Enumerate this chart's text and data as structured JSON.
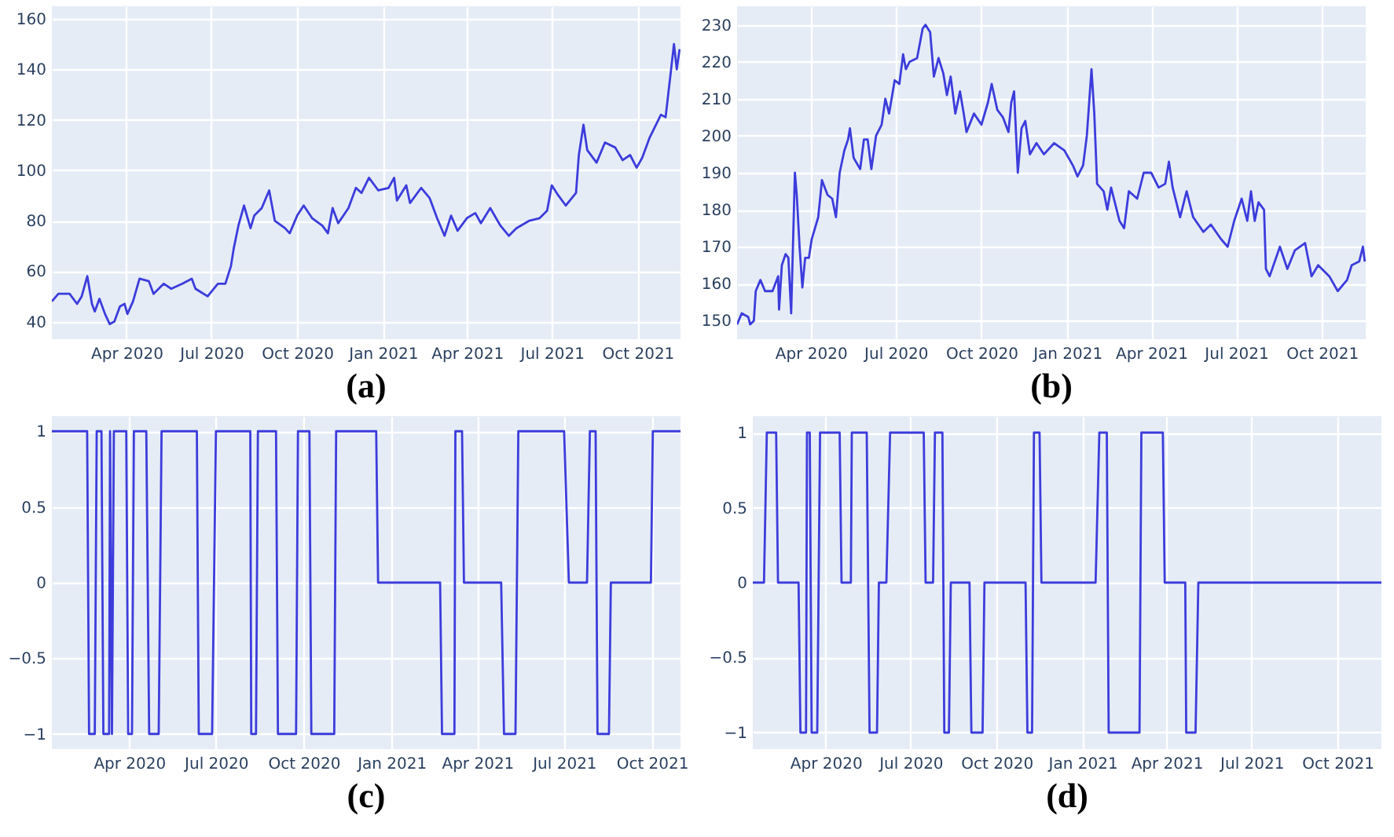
{
  "chart_data": [
    {
      "type": "line",
      "title": "(a)",
      "grid": true,
      "xlim": [
        "2020-01-12",
        "2021-11-16"
      ],
      "ylim": [
        33,
        165
      ],
      "xticks": [
        {
          "value": "2020-04-01",
          "label": "Apr 2020"
        },
        {
          "value": "2020-07-01",
          "label": "Jul 2020"
        },
        {
          "value": "2020-10-01",
          "label": "Oct 2020"
        },
        {
          "value": "2021-01-01",
          "label": "Jan 2021"
        },
        {
          "value": "2021-04-01",
          "label": "Apr 2021"
        },
        {
          "value": "2021-07-01",
          "label": "Jul 2021"
        },
        {
          "value": "2021-10-01",
          "label": "Oct 2021"
        }
      ],
      "yticks": [
        40,
        60,
        80,
        100,
        120,
        140,
        160
      ],
      "x": [
        "2020-01-12",
        "2020-01-19",
        "2020-01-31",
        "2020-02-08",
        "2020-02-13",
        "2020-02-19",
        "2020-02-24",
        "2020-02-27",
        "2020-03-03",
        "2020-03-09",
        "2020-03-14",
        "2020-03-19",
        "2020-03-25",
        "2020-03-30",
        "2020-04-02",
        "2020-04-08",
        "2020-04-15",
        "2020-04-25",
        "2020-04-30",
        "2020-05-11",
        "2020-05-19",
        "2020-05-31",
        "2020-06-10",
        "2020-06-14",
        "2020-06-27",
        "2020-07-08",
        "2020-07-16",
        "2020-07-22",
        "2020-07-25",
        "2020-07-30",
        "2020-08-05",
        "2020-08-12",
        "2020-08-16",
        "2020-08-24",
        "2020-09-01",
        "2020-09-07",
        "2020-09-18",
        "2020-09-23",
        "2020-10-01",
        "2020-10-08",
        "2020-10-17",
        "2020-10-28",
        "2020-11-03",
        "2020-11-08",
        "2020-11-14",
        "2020-11-25",
        "2020-12-03",
        "2020-12-09",
        "2020-12-17",
        "2020-12-27",
        "2021-01-07",
        "2021-01-13",
        "2021-01-16",
        "2021-01-26",
        "2021-01-30",
        "2021-02-11",
        "2021-02-20",
        "2021-02-28",
        "2021-03-08",
        "2021-03-15",
        "2021-03-22",
        "2021-04-01",
        "2021-04-10",
        "2021-04-16",
        "2021-04-26",
        "2021-05-07",
        "2021-05-16",
        "2021-05-24",
        "2021-06-07",
        "2021-06-18",
        "2021-06-26",
        "2021-07-01",
        "2021-07-08",
        "2021-07-16",
        "2021-07-27",
        "2021-07-30",
        "2021-08-04",
        "2021-08-08",
        "2021-08-18",
        "2021-08-27",
        "2021-09-07",
        "2021-09-15",
        "2021-09-23",
        "2021-09-30",
        "2021-10-06",
        "2021-10-14",
        "2021-10-26",
        "2021-10-31",
        "2021-11-05",
        "2021-11-09",
        "2021-11-12",
        "2021-11-15"
      ],
      "series": [
        {
          "color": "#3c3cdc",
          "values": [
            48,
            51,
            51,
            47,
            50,
            58,
            47,
            44,
            49,
            43,
            39,
            40,
            46,
            47,
            43,
            48,
            57,
            56,
            51,
            55,
            53,
            55,
            57,
            53,
            50,
            55,
            55,
            62,
            69,
            78,
            86,
            77,
            82,
            85,
            92,
            80,
            77,
            75,
            82,
            86,
            81,
            78,
            75,
            85,
            79,
            85,
            93,
            91,
            97,
            92,
            93,
            97,
            88,
            94,
            87,
            93,
            89,
            81,
            74,
            82,
            76,
            81,
            83,
            79,
            85,
            78,
            74,
            77,
            80,
            81,
            84,
            94,
            90,
            86,
            91,
            106,
            118,
            108,
            103,
            111,
            109,
            104,
            106,
            101,
            105,
            113,
            122,
            121,
            137,
            150,
            140,
            148
          ]
        }
      ]
    },
    {
      "type": "line",
      "title": "(b)",
      "grid": true,
      "xlim": [
        "2020-01-13",
        "2021-11-17"
      ],
      "ylim": [
        145,
        235
      ],
      "xticks": [
        {
          "value": "2020-04-01",
          "label": "Apr 2020"
        },
        {
          "value": "2020-07-01",
          "label": "Jul 2020"
        },
        {
          "value": "2020-10-01",
          "label": "Oct 2020"
        },
        {
          "value": "2021-01-01",
          "label": "Jan 2021"
        },
        {
          "value": "2021-04-01",
          "label": "Apr 2021"
        },
        {
          "value": "2021-07-01",
          "label": "Jul 2021"
        },
        {
          "value": "2021-10-01",
          "label": "Oct 2021"
        }
      ],
      "yticks": [
        150,
        160,
        170,
        180,
        190,
        200,
        210,
        220,
        230
      ],
      "x": [
        "2020-01-13",
        "2020-01-18",
        "2020-01-25",
        "2020-01-27",
        "2020-01-31",
        "2020-02-02",
        "2020-02-07",
        "2020-02-12",
        "2020-02-20",
        "2020-02-26",
        "2020-02-27",
        "2020-03-01",
        "2020-03-05",
        "2020-03-08",
        "2020-03-11",
        "2020-03-15",
        "2020-03-17",
        "2020-03-20",
        "2020-03-23",
        "2020-03-26",
        "2020-03-30",
        "2020-04-02",
        "2020-04-09",
        "2020-04-13",
        "2020-04-19",
        "2020-04-24",
        "2020-04-28",
        "2020-05-02",
        "2020-05-07",
        "2020-05-11",
        "2020-05-13",
        "2020-05-17",
        "2020-05-24",
        "2020-05-28",
        "2020-06-01",
        "2020-06-05",
        "2020-06-10",
        "2020-06-16",
        "2020-06-20",
        "2020-06-24",
        "2020-06-30",
        "2020-07-05",
        "2020-07-09",
        "2020-07-12",
        "2020-07-16",
        "2020-07-24",
        "2020-07-30",
        "2020-08-02",
        "2020-08-07",
        "2020-08-11",
        "2020-08-16",
        "2020-08-21",
        "2020-08-25",
        "2020-08-29",
        "2020-09-03",
        "2020-09-08",
        "2020-09-12",
        "2020-09-15",
        "2020-09-23",
        "2020-10-01",
        "2020-10-08",
        "2020-10-12",
        "2020-10-18",
        "2020-10-24",
        "2020-10-30",
        "2020-11-02",
        "2020-11-05",
        "2020-11-09",
        "2020-11-13",
        "2020-11-17",
        "2020-11-22",
        "2020-11-29",
        "2020-12-07",
        "2020-12-18",
        "2020-12-29",
        "2021-01-07",
        "2021-01-12",
        "2021-01-18",
        "2021-01-22",
        "2021-01-27",
        "2021-01-30",
        "2021-02-02",
        "2021-02-09",
        "2021-02-13",
        "2021-02-17",
        "2021-02-26",
        "2021-03-03",
        "2021-03-08",
        "2021-03-17",
        "2021-03-24",
        "2021-04-01",
        "2021-04-09",
        "2021-04-16",
        "2021-04-20",
        "2021-04-24",
        "2021-05-02",
        "2021-05-09",
        "2021-05-16",
        "2021-05-27",
        "2021-06-04",
        "2021-06-15",
        "2021-06-22",
        "2021-06-29",
        "2021-07-07",
        "2021-07-13",
        "2021-07-17",
        "2021-07-21",
        "2021-07-25",
        "2021-07-31",
        "2021-08-02",
        "2021-08-06",
        "2021-08-17",
        "2021-08-25",
        "2021-09-02",
        "2021-09-13",
        "2021-09-20",
        "2021-09-27",
        "2021-10-09",
        "2021-10-18",
        "2021-10-28",
        "2021-11-02",
        "2021-11-10",
        "2021-11-14",
        "2021-11-16"
      ],
      "series": [
        {
          "color": "#3c3cdc",
          "values": [
            149,
            152,
            151,
            149,
            150,
            158,
            161,
            158,
            158,
            162,
            153,
            165,
            168,
            167,
            152,
            190,
            184,
            170,
            159,
            167,
            167,
            172,
            178,
            188,
            184,
            183,
            178,
            190,
            196,
            199,
            202,
            194,
            191,
            199,
            199,
            191,
            200,
            203,
            210,
            206,
            215,
            214,
            222,
            218,
            220,
            221,
            229,
            230,
            228,
            216,
            221,
            217,
            211,
            216,
            206,
            212,
            206,
            201,
            206,
            203,
            209,
            214,
            207,
            205,
            201,
            209,
            212,
            190,
            202,
            204,
            195,
            198,
            195,
            198,
            196,
            192,
            189,
            192,
            200,
            218,
            206,
            187,
            185,
            180,
            186,
            177,
            175,
            185,
            183,
            190,
            190,
            186,
            187,
            193,
            186,
            178,
            185,
            178,
            174,
            176,
            172,
            170,
            177,
            183,
            177,
            185,
            177,
            182,
            180,
            164,
            162,
            170,
            164,
            169,
            171,
            162,
            165,
            162,
            158,
            161,
            165,
            166,
            170,
            166
          ]
        }
      ]
    },
    {
      "type": "line",
      "title": "(c)",
      "grid": true,
      "xlim": [
        "2020-01-11",
        "2021-10-31"
      ],
      "ylim": [
        -1.1,
        1.1
      ],
      "xticks": [
        {
          "value": "2020-04-01",
          "label": "Apr 2020"
        },
        {
          "value": "2020-07-01",
          "label": "Jul 2020"
        },
        {
          "value": "2020-10-01",
          "label": "Oct 2020"
        },
        {
          "value": "2021-01-01",
          "label": "Jan 2021"
        },
        {
          "value": "2021-04-01",
          "label": "Apr 2021"
        },
        {
          "value": "2021-07-01",
          "label": "Jul 2021"
        },
        {
          "value": "2021-10-01",
          "label": "Oct 2021"
        }
      ],
      "yticks": [
        -1,
        -0.5,
        0,
        0.5,
        1
      ],
      "x": [
        "2020-01-11",
        "2020-02-17",
        "2020-02-19",
        "2020-02-25",
        "2020-02-27",
        "2020-03-03",
        "2020-03-05",
        "2020-03-11",
        "2020-03-12",
        "2020-03-14",
        "2020-03-16",
        "2020-03-29",
        "2020-03-31",
        "2020-04-04",
        "2020-04-06",
        "2020-04-19",
        "2020-04-22",
        "2020-05-02",
        "2020-05-05",
        "2020-06-11",
        "2020-06-13",
        "2020-06-27",
        "2020-07-01",
        "2020-08-06",
        "2020-08-07",
        "2020-08-12",
        "2020-08-14",
        "2020-09-02",
        "2020-09-04",
        "2020-09-23",
        "2020-09-25",
        "2020-10-07",
        "2020-10-09",
        "2020-11-02",
        "2020-11-04",
        "2020-12-16",
        "2020-12-18",
        "2021-02-21",
        "2021-02-23",
        "2021-03-08",
        "2021-03-09",
        "2021-03-16",
        "2021-03-18",
        "2021-04-26",
        "2021-04-29",
        "2021-05-11",
        "2021-05-14",
        "2021-07-01",
        "2021-07-06",
        "2021-07-25",
        "2021-07-28",
        "2021-08-03",
        "2021-08-05",
        "2021-08-17",
        "2021-08-19",
        "2021-09-30",
        "2021-10-02",
        "2021-10-31"
      ],
      "series": [
        {
          "color": "#3c3cdc",
          "values": [
            1,
            1,
            -1,
            -1,
            1,
            1,
            -1,
            -1,
            1,
            -1,
            1,
            1,
            -1,
            -1,
            1,
            1,
            -1,
            -1,
            1,
            1,
            -1,
            -1,
            1,
            1,
            -1,
            -1,
            1,
            1,
            -1,
            -1,
            1,
            1,
            -1,
            -1,
            1,
            1,
            0,
            0,
            -1,
            -1,
            1,
            1,
            0,
            0,
            -1,
            -1,
            1,
            1,
            0,
            0,
            1,
            1,
            -1,
            -1,
            0,
            0,
            1,
            1
          ]
        }
      ]
    },
    {
      "type": "line",
      "title": "(d)",
      "grid": true,
      "xlim": [
        "2020-01-14",
        "2021-11-17"
      ],
      "ylim": [
        -1.11,
        1.11
      ],
      "xticks": [
        {
          "value": "2020-04-01",
          "label": "Apr 2020"
        },
        {
          "value": "2020-07-01",
          "label": "Jul 2020"
        },
        {
          "value": "2020-10-01",
          "label": "Oct 2020"
        },
        {
          "value": "2021-01-01",
          "label": "Jan 2021"
        },
        {
          "value": "2021-04-01",
          "label": "Apr 2021"
        },
        {
          "value": "2021-07-01",
          "label": "Jul 2021"
        },
        {
          "value": "2021-10-01",
          "label": "Oct 2021"
        }
      ],
      "yticks": [
        -1,
        -0.5,
        0,
        0.5,
        1
      ],
      "x": [
        "2020-01-14",
        "2020-01-26",
        "2020-01-29",
        "2020-02-08",
        "2020-02-10",
        "2020-03-03",
        "2020-03-05",
        "2020-03-11",
        "2020-03-12",
        "2020-03-15",
        "2020-03-17",
        "2020-03-23",
        "2020-03-26",
        "2020-04-16",
        "2020-04-18",
        "2020-04-28",
        "2020-04-29",
        "2020-05-15",
        "2020-05-18",
        "2020-05-26",
        "2020-05-28",
        "2020-06-05",
        "2020-06-09",
        "2020-07-15",
        "2020-07-17",
        "2020-07-25",
        "2020-07-27",
        "2020-08-04",
        "2020-08-06",
        "2020-08-11",
        "2020-08-13",
        "2020-09-02",
        "2020-09-04",
        "2020-09-16",
        "2020-09-18",
        "2020-11-01",
        "2020-11-03",
        "2020-11-08",
        "2020-11-10",
        "2020-11-16",
        "2020-11-18",
        "2021-01-15",
        "2021-01-19",
        "2021-01-27",
        "2021-01-29",
        "2021-03-03",
        "2021-03-05",
        "2021-03-28",
        "2021-03-30",
        "2021-04-21",
        "2021-04-22",
        "2021-05-02",
        "2021-05-05",
        "2021-11-17"
      ],
      "series": [
        {
          "color": "#3c3cdc",
          "values": [
            0,
            0,
            1,
            1,
            0,
            0,
            -1,
            -1,
            1,
            1,
            -1,
            -1,
            1,
            1,
            0,
            0,
            1,
            1,
            -1,
            -1,
            0,
            0,
            1,
            1,
            0,
            0,
            1,
            1,
            -1,
            -1,
            0,
            0,
            -1,
            -1,
            0,
            0,
            -1,
            -1,
            1,
            1,
            0,
            0,
            1,
            1,
            -1,
            -1,
            1,
            1,
            0,
            0,
            -1,
            -1,
            0,
            0
          ]
        }
      ]
    }
  ]
}
